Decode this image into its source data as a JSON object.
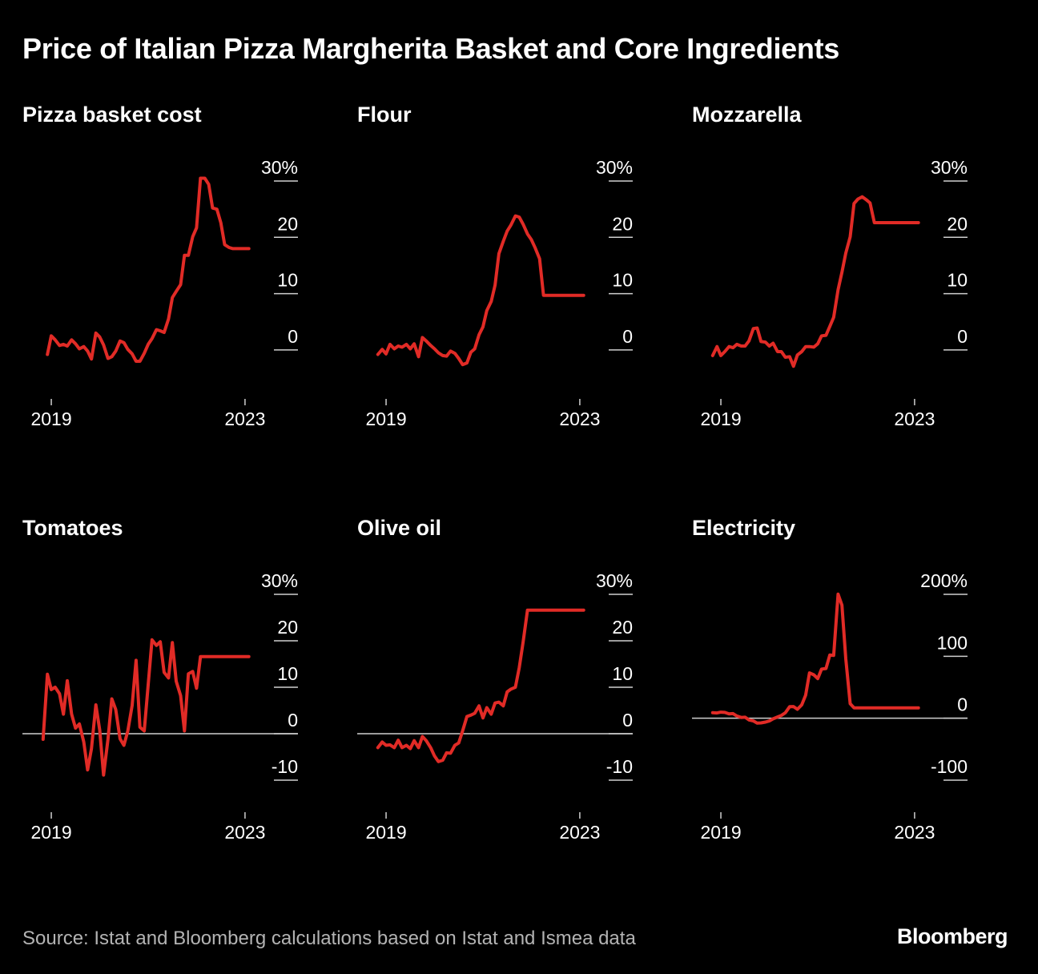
{
  "title": "Price of Italian Pizza Margherita Basket and Core Ingredients",
  "source": "Source: Istat and Bloomberg calculations based on Istat and Ismea data",
  "brand": "Bloomberg",
  "colors": {
    "background": "#000000",
    "line": "#e12b26",
    "text": "#ffffff",
    "muted": "#b3b3b3"
  },
  "chart_data": [
    {
      "type": "line",
      "title": "Pizza basket cost",
      "ylim": [
        -3,
        30
      ],
      "yticks": [
        0,
        10,
        20,
        30
      ],
      "ytick_labels": [
        "0",
        "10",
        "20",
        "30%"
      ],
      "zero_line": false,
      "xlim": [
        2018.9,
        2023.2
      ],
      "xticks": [
        2019,
        2023
      ],
      "xtick_labels": [
        "2019",
        "2023"
      ],
      "series": [
        {
          "x": [
            2018.92,
            2019.0,
            2019.08,
            2019.17,
            2019.25,
            2019.33,
            2019.42,
            2019.5,
            2019.58,
            2019.67,
            2019.75,
            2019.83,
            2019.92,
            2020.0,
            2020.08,
            2020.17,
            2020.25,
            2020.33,
            2020.42,
            2020.5,
            2020.58,
            2020.67,
            2020.75,
            2020.83,
            2020.92,
            2021.0,
            2021.08,
            2021.17,
            2021.25,
            2021.33,
            2021.42,
            2021.5,
            2021.58,
            2021.67,
            2021.75,
            2021.83,
            2021.92,
            2022.0,
            2022.08,
            2022.17,
            2022.25,
            2022.33,
            2022.42,
            2022.5,
            2022.58,
            2022.67,
            2022.75,
            2022.83,
            2022.92,
            2023.0,
            2023.08
          ],
          "values": [
            -0.8,
            2.5,
            1.8,
            0.8,
            1.0,
            0.7,
            1.8,
            1.1,
            0.2,
            0.6,
            -0.2,
            -1.6,
            3.0,
            2.3,
            0.9,
            -1.5,
            -1.2,
            -0.2,
            1.6,
            1.3,
            0.1,
            -0.7,
            -2.0,
            -2.0,
            -0.6,
            1.0,
            2.0,
            3.6,
            3.4,
            3.1,
            5.5,
            9.3,
            10.4,
            11.6,
            16.8,
            16.8,
            20.1,
            21.7,
            30.5,
            30.5,
            29.4,
            25.2,
            25.0,
            22.6,
            18.7,
            18.2,
            18.0,
            18.0,
            18.0,
            18.0,
            18.0
          ]
        }
      ]
    },
    {
      "type": "line",
      "title": "Flour",
      "ylim": [
        -3,
        30
      ],
      "yticks": [
        0,
        10,
        20,
        30
      ],
      "ytick_labels": [
        "0",
        "10",
        "20",
        "30%"
      ],
      "zero_line": false,
      "xlim": [
        2018.9,
        2023.2
      ],
      "xticks": [
        2019,
        2023
      ],
      "xtick_labels": [
        "2019",
        "2023"
      ],
      "series": [
        {
          "x": [
            2018.83,
            2018.92,
            2019.0,
            2019.08,
            2019.17,
            2019.25,
            2019.33,
            2019.42,
            2019.5,
            2019.58,
            2019.67,
            2019.75,
            2019.83,
            2019.92,
            2020.0,
            2020.08,
            2020.17,
            2020.25,
            2020.33,
            2020.42,
            2020.5,
            2020.58,
            2020.67,
            2020.75,
            2020.83,
            2020.92,
            2021.0,
            2021.08,
            2021.17,
            2021.25,
            2021.33,
            2021.42,
            2021.5,
            2021.58,
            2021.67,
            2021.75,
            2021.83,
            2021.92,
            2022.0,
            2022.08,
            2022.17,
            2022.25,
            2022.33,
            2022.42,
            2022.5,
            2022.58,
            2022.67,
            2022.75,
            2022.83,
            2022.92,
            2023.0,
            2023.08
          ],
          "values": [
            -0.8,
            0.1,
            -0.7,
            1.0,
            0.2,
            0.7,
            0.5,
            1.0,
            0.2,
            1.1,
            -1.2,
            2.2,
            1.6,
            0.8,
            0.2,
            -0.5,
            -1.0,
            -1.1,
            -0.2,
            -0.6,
            -1.5,
            -2.6,
            -2.3,
            -0.4,
            0.2,
            2.7,
            4.1,
            7.0,
            8.6,
            11.5,
            17.1,
            19.3,
            21.1,
            22.2,
            23.8,
            23.6,
            22.3,
            20.6,
            19.6,
            18.1,
            16.2,
            9.7,
            9.7,
            9.7,
            9.7,
            9.7,
            9.7,
            9.7,
            9.7,
            9.7,
            9.7,
            9.7
          ]
        }
      ]
    },
    {
      "type": "line",
      "title": "Mozzarella",
      "ylim": [
        -3,
        30
      ],
      "yticks": [
        0,
        10,
        20,
        30
      ],
      "ytick_labels": [
        "0",
        "10",
        "20",
        "30%"
      ],
      "zero_line": false,
      "xlim": [
        2018.9,
        2023.2
      ],
      "xticks": [
        2019,
        2023
      ],
      "xtick_labels": [
        "2019",
        "2023"
      ],
      "series": [
        {
          "x": [
            2018.83,
            2018.92,
            2019.0,
            2019.08,
            2019.17,
            2019.25,
            2019.33,
            2019.42,
            2019.5,
            2019.58,
            2019.67,
            2019.75,
            2019.83,
            2019.92,
            2020.0,
            2020.08,
            2020.17,
            2020.25,
            2020.33,
            2020.42,
            2020.5,
            2020.58,
            2020.67,
            2020.75,
            2020.83,
            2020.92,
            2021.0,
            2021.08,
            2021.17,
            2021.25,
            2021.33,
            2021.42,
            2021.5,
            2021.58,
            2021.67,
            2021.75,
            2021.83,
            2021.92,
            2022.0,
            2022.08,
            2022.17,
            2022.25,
            2022.33,
            2022.42,
            2022.5,
            2022.58,
            2022.67,
            2022.75,
            2022.83,
            2022.92,
            2023.0,
            2023.08
          ],
          "values": [
            -1.0,
            0.6,
            -1.0,
            -0.3,
            0.6,
            0.4,
            1.0,
            0.7,
            0.7,
            1.6,
            3.8,
            3.9,
            1.5,
            1.4,
            0.7,
            1.2,
            -0.3,
            -0.3,
            -1.3,
            -1.2,
            -2.9,
            -0.9,
            -0.3,
            0.6,
            0.6,
            0.5,
            1.1,
            2.5,
            2.6,
            4.2,
            5.8,
            10.7,
            13.8,
            17.2,
            20.1,
            26.0,
            26.8,
            27.2,
            26.7,
            26.1,
            22.6,
            22.6,
            22.6,
            22.6,
            22.6,
            22.6,
            22.6,
            22.6,
            22.6,
            22.6,
            22.6,
            22.6
          ]
        }
      ]
    },
    {
      "type": "line",
      "title": "Tomatoes",
      "ylim": [
        -10,
        30
      ],
      "yticks": [
        -10,
        0,
        10,
        20,
        30
      ],
      "ytick_labels": [
        "-10",
        "0",
        "10",
        "20",
        "30%"
      ],
      "zero_line": true,
      "xlim": [
        2018.9,
        2023.2
      ],
      "xticks": [
        2019,
        2023
      ],
      "xtick_labels": [
        "2019",
        "2023"
      ],
      "series": [
        {
          "x": [
            2018.83,
            2018.92,
            2019.0,
            2019.08,
            2019.17,
            2019.25,
            2019.33,
            2019.42,
            2019.5,
            2019.58,
            2019.67,
            2019.75,
            2019.83,
            2019.92,
            2020.0,
            2020.08,
            2020.17,
            2020.25,
            2020.33,
            2020.42,
            2020.5,
            2020.58,
            2020.67,
            2020.75,
            2020.83,
            2020.92,
            2021.0,
            2021.08,
            2021.17,
            2021.25,
            2021.33,
            2021.42,
            2021.5,
            2021.58,
            2021.67,
            2021.75,
            2021.83,
            2021.92,
            2022.0,
            2022.08,
            2022.17,
            2022.25,
            2022.33,
            2022.42,
            2022.5,
            2022.58,
            2022.67,
            2022.75,
            2022.83,
            2022.92,
            2023.0,
            2023.08
          ],
          "values": [
            -1.2,
            12.8,
            9.5,
            10.0,
            8.6,
            4.2,
            11.4,
            4.2,
            1.2,
            2.1,
            -1.8,
            -7.8,
            -3.2,
            6.2,
            0.8,
            -8.9,
            -1.2,
            7.5,
            5.2,
            -1.1,
            -2.5,
            0.6,
            6.1,
            15.8,
            1.4,
            0.6,
            10.5,
            20.2,
            19.0,
            19.8,
            13.2,
            12.0,
            19.6,
            11.3,
            8.2,
            0.6,
            12.9,
            13.4,
            9.8,
            16.6,
            16.6,
            16.6,
            16.6,
            16.6,
            16.6,
            16.6,
            16.6,
            16.6,
            16.6,
            16.6,
            16.6,
            16.6
          ]
        }
      ]
    },
    {
      "type": "line",
      "title": "Olive oil",
      "ylim": [
        -10,
        30
      ],
      "yticks": [
        -10,
        0,
        10,
        20,
        30
      ],
      "ytick_labels": [
        "-10",
        "0",
        "10",
        "20",
        "30%"
      ],
      "zero_line": true,
      "xlim": [
        2018.9,
        2023.2
      ],
      "xticks": [
        2019,
        2023
      ],
      "xtick_labels": [
        "2019",
        "2023"
      ],
      "series": [
        {
          "x": [
            2018.83,
            2018.92,
            2019.0,
            2019.08,
            2019.17,
            2019.25,
            2019.33,
            2019.42,
            2019.5,
            2019.58,
            2019.67,
            2019.75,
            2019.83,
            2019.92,
            2020.0,
            2020.08,
            2020.17,
            2020.25,
            2020.33,
            2020.42,
            2020.5,
            2020.58,
            2020.67,
            2020.75,
            2020.83,
            2020.92,
            2021.0,
            2021.08,
            2021.17,
            2021.25,
            2021.33,
            2021.42,
            2021.5,
            2021.58,
            2021.67,
            2021.75,
            2021.83,
            2021.92,
            2022.0,
            2022.08,
            2022.17,
            2022.25,
            2022.33,
            2022.42,
            2022.5,
            2022.58,
            2022.67,
            2022.75,
            2022.83,
            2022.92,
            2023.0,
            2023.08
          ],
          "values": [
            -3.0,
            -1.8,
            -2.5,
            -2.4,
            -3.0,
            -1.4,
            -3.0,
            -2.5,
            -3.2,
            -1.5,
            -3.0,
            -0.6,
            -1.5,
            -3.0,
            -4.8,
            -6.0,
            -5.7,
            -4.1,
            -4.2,
            -2.5,
            -2.0,
            0.6,
            3.7,
            4.0,
            4.4,
            6.0,
            3.4,
            5.6,
            4.2,
            6.6,
            6.8,
            6.0,
            9.0,
            9.6,
            10.0,
            14.2,
            19.8,
            26.6,
            26.6,
            26.6,
            26.6,
            26.6,
            26.6,
            26.6,
            26.6,
            26.6,
            26.6,
            26.6,
            26.6,
            26.6,
            26.6,
            26.6
          ]
        }
      ]
    },
    {
      "type": "line",
      "title": "Electricity",
      "ylim": [
        -100,
        200
      ],
      "yticks": [
        -100,
        0,
        100,
        200
      ],
      "ytick_labels": [
        "-100",
        "0",
        "100",
        "200%"
      ],
      "zero_line": true,
      "xlim": [
        2018.9,
        2023.2
      ],
      "xticks": [
        2019,
        2023
      ],
      "xtick_labels": [
        "2019",
        "2023"
      ],
      "series": [
        {
          "x": [
            2018.83,
            2018.92,
            2019.0,
            2019.08,
            2019.17,
            2019.25,
            2019.33,
            2019.42,
            2019.5,
            2019.58,
            2019.67,
            2019.75,
            2019.83,
            2019.92,
            2020.0,
            2020.08,
            2020.17,
            2020.25,
            2020.33,
            2020.42,
            2020.5,
            2020.58,
            2020.67,
            2020.75,
            2020.83,
            2020.92,
            2021.0,
            2021.08,
            2021.17,
            2021.25,
            2021.33,
            2021.42,
            2021.5,
            2021.58,
            2021.67,
            2021.75,
            2021.83,
            2021.92,
            2022.0,
            2022.08,
            2022.17,
            2022.25,
            2022.33,
            2022.42,
            2022.5,
            2022.58,
            2022.67,
            2022.75,
            2022.83,
            2022.92,
            2023.0,
            2023.08
          ],
          "values": [
            9.0,
            8.5,
            9.8,
            9.4,
            7.0,
            7.4,
            3.6,
            1.2,
            1.6,
            -2.7,
            -4.3,
            -7.9,
            -7.6,
            -6.2,
            -4.5,
            -0.9,
            2.0,
            4.5,
            8.7,
            18.6,
            18.9,
            14.4,
            21.6,
            37.2,
            73.2,
            70.1,
            64.0,
            79.4,
            80.3,
            102.1,
            101.5,
            200.2,
            182.6,
            96.1,
            23.5,
            16.8,
            16.8,
            16.8,
            16.8,
            16.8,
            16.8,
            16.8,
            16.8,
            16.8,
            16.8,
            16.8,
            16.8,
            16.8,
            16.8,
            16.8,
            16.8,
            16.8
          ]
        }
      ]
    }
  ]
}
